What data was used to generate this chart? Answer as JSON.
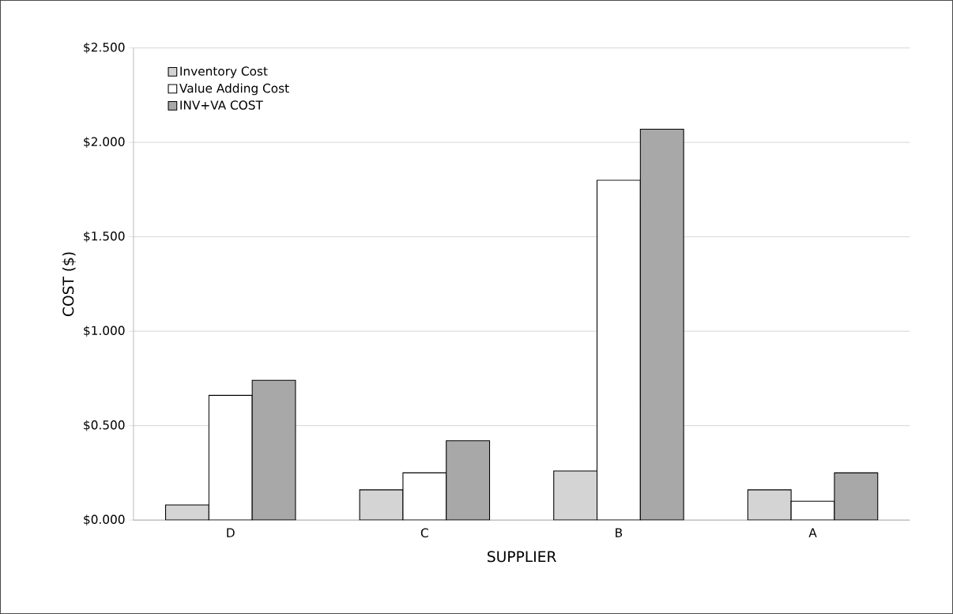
{
  "chart_data": {
    "type": "bar",
    "xlabel": "SUPPLIER",
    "ylabel": "COST ($)",
    "categories": [
      "D",
      "C",
      "B",
      "A"
    ],
    "series": [
      {
        "name": "Inventory Cost",
        "color": "#d4d4d4",
        "values": [
          0.08,
          0.16,
          0.26,
          0.16
        ]
      },
      {
        "name": "Value Adding Cost",
        "color": "#ffffff",
        "values": [
          0.66,
          0.25,
          1.8,
          0.1
        ]
      },
      {
        "name": "INV+VA COST",
        "color": "#a8a8a8",
        "values": [
          0.74,
          0.42,
          2.07,
          0.25
        ]
      }
    ],
    "ylim": [
      0,
      2.5
    ],
    "yticks": [
      {
        "value": 0,
        "label": "$0.000"
      },
      {
        "value": 0.5,
        "label": "$0.500"
      },
      {
        "value": 1.0,
        "label": "$1.000"
      },
      {
        "value": 1.5,
        "label": "$1.500"
      },
      {
        "value": 2.0,
        "label": "$2.000"
      },
      {
        "value": 2.5,
        "label": "$2.500"
      }
    ],
    "grid": "y",
    "legend": "top left"
  }
}
